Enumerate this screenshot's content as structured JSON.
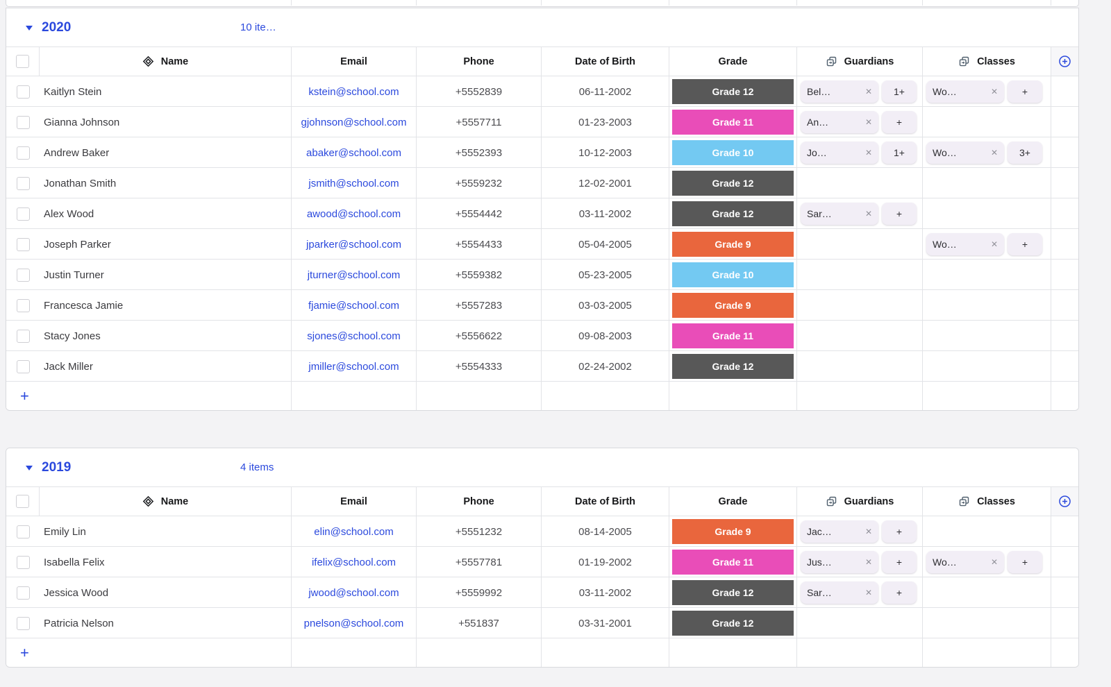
{
  "page": {
    "background": "#f3f3f5",
    "accent_blue": "#2b49dd"
  },
  "ui": {
    "add_row_label": "+",
    "chip_remove_glyph": "✕"
  },
  "columns": [
    {
      "key": "name",
      "label": "Name",
      "icon": "diamond"
    },
    {
      "key": "email",
      "label": "Email",
      "icon": null
    },
    {
      "key": "phone",
      "label": "Phone",
      "icon": null
    },
    {
      "key": "dob",
      "label": "Date of Birth",
      "icon": null
    },
    {
      "key": "grade",
      "label": "Grade",
      "icon": null
    },
    {
      "key": "guardians",
      "label": "Guardians",
      "icon": "link"
    },
    {
      "key": "classes",
      "label": "Classes",
      "icon": "link"
    }
  ],
  "grade_colors": {
    "Grade 9": "#e9663d",
    "Grade 10": "#73c9f2",
    "Grade 11": "#e94db8",
    "Grade 12": "#585858"
  },
  "groups": [
    {
      "year": "2020",
      "items_label": "10 ite…",
      "rows": [
        {
          "name": "Kaitlyn Stein",
          "email": "kstein@school.com",
          "phone": "+5552839",
          "dob": "06-11-2002",
          "grade": "Grade 12",
          "guardians": {
            "label": "Bel…",
            "more": "1+"
          },
          "classes": {
            "label": "Wo…",
            "more": "+"
          }
        },
        {
          "name": "Gianna Johnson",
          "email": "gjohnson@school.com",
          "phone": "+5557711",
          "dob": "01-23-2003",
          "grade": "Grade 11",
          "guardians": {
            "label": "An…",
            "more": "+"
          },
          "classes": null
        },
        {
          "name": "Andrew Baker",
          "email": "abaker@school.com",
          "phone": "+5552393",
          "dob": "10-12-2003",
          "grade": "Grade 10",
          "guardians": {
            "label": "Jo…",
            "more": "1+"
          },
          "classes": {
            "label": "Wo…",
            "more": "3+"
          }
        },
        {
          "name": "Jonathan Smith",
          "email": "jsmith@school.com",
          "phone": "+5559232",
          "dob": "12-02-2001",
          "grade": "Grade 12",
          "guardians": null,
          "classes": null
        },
        {
          "name": "Alex Wood",
          "email": "awood@school.com",
          "phone": "+5554442",
          "dob": "03-11-2002",
          "grade": "Grade 12",
          "guardians": {
            "label": "Sar…",
            "more": "+"
          },
          "classes": null
        },
        {
          "name": "Joseph Parker",
          "email": "jparker@school.com",
          "phone": "+5554433",
          "dob": "05-04-2005",
          "grade": "Grade 9",
          "guardians": null,
          "classes": {
            "label": "Wo…",
            "more": "+"
          }
        },
        {
          "name": "Justin Turner",
          "email": "jturner@school.com",
          "phone": "+5559382",
          "dob": "05-23-2005",
          "grade": "Grade 10",
          "guardians": null,
          "classes": null
        },
        {
          "name": "Francesca Jamie",
          "email": "fjamie@school.com",
          "phone": "+5557283",
          "dob": "03-03-2005",
          "grade": "Grade 9",
          "guardians": null,
          "classes": null
        },
        {
          "name": "Stacy Jones",
          "email": "sjones@school.com",
          "phone": "+5556622",
          "dob": "09-08-2003",
          "grade": "Grade 11",
          "guardians": null,
          "classes": null
        },
        {
          "name": "Jack Miller",
          "email": "jmiller@school.com",
          "phone": "+5554333",
          "dob": "02-24-2002",
          "grade": "Grade 12",
          "guardians": null,
          "classes": null
        }
      ]
    },
    {
      "year": "2019",
      "items_label": "4 items",
      "rows": [
        {
          "name": "Emily Lin",
          "email": "elin@school.com",
          "phone": "+5551232",
          "dob": "08-14-2005",
          "grade": "Grade 9",
          "guardians": {
            "label": "Jac…",
            "more": "+"
          },
          "classes": null
        },
        {
          "name": "Isabella Felix",
          "email": "ifelix@school.com",
          "phone": "+5557781",
          "dob": "01-19-2002",
          "grade": "Grade 11",
          "guardians": {
            "label": "Jus…",
            "more": "+"
          },
          "classes": {
            "label": "Wo…",
            "more": "+"
          }
        },
        {
          "name": "Jessica Wood",
          "email": "jwood@school.com",
          "phone": "+5559992",
          "dob": "03-11-2002",
          "grade": "Grade 12",
          "guardians": {
            "label": "Sar…",
            "more": "+"
          },
          "classes": null
        },
        {
          "name": "Patricia Nelson",
          "email": "pnelson@school.com",
          "phone": "+551837",
          "dob": "03-31-2001",
          "grade": "Grade 12",
          "guardians": null,
          "classes": null
        }
      ]
    }
  ]
}
